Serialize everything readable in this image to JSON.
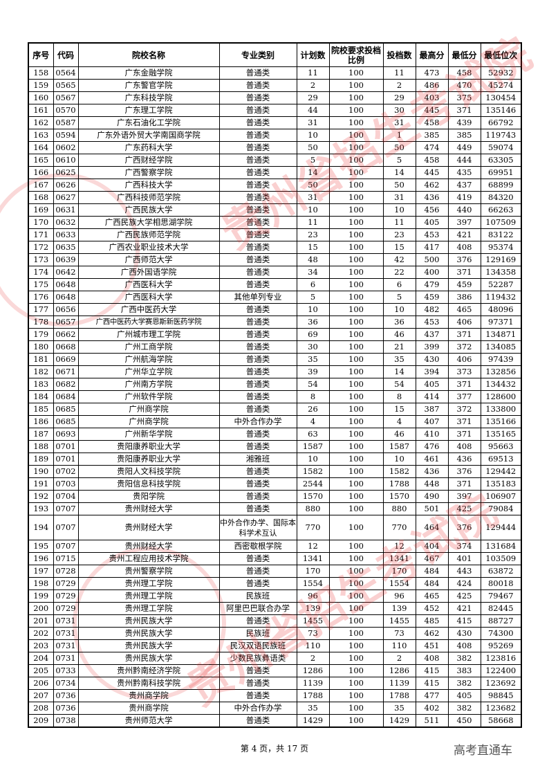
{
  "headers": [
    "序号",
    "代码",
    "院校名称",
    "专业类别",
    "计划数",
    "院校要求投档比例",
    "投档数",
    "最高分",
    "最低分",
    "最低位次"
  ],
  "rows": [
    [
      "158",
      "0564",
      "广东金融学院",
      "普通类",
      "11",
      "100",
      "11",
      "473",
      "458",
      "52932"
    ],
    [
      "159",
      "0565",
      "广东警官学院",
      "普通类",
      "2",
      "100",
      "2",
      "486",
      "470",
      "45274"
    ],
    [
      "160",
      "0567",
      "广东科技学院",
      "普通类",
      "29",
      "100",
      "29",
      "403",
      "375",
      "130454"
    ],
    [
      "161",
      "0570",
      "广东理工学院",
      "普通类",
      "44",
      "100",
      "30",
      "445",
      "371",
      "135146"
    ],
    [
      "162",
      "0587",
      "广东石油化工学院",
      "普通类",
      "31",
      "100",
      "31",
      "458",
      "439",
      "66792"
    ],
    [
      "163",
      "0594",
      "广东外语外贸大学南国商学院",
      "普通类",
      "10",
      "100",
      "1",
      "385",
      "385",
      "119743"
    ],
    [
      "164",
      "0602",
      "广东药科大学",
      "普通类",
      "50",
      "100",
      "50",
      "474",
      "449",
      "59074"
    ],
    [
      "165",
      "0610",
      "广西财经学院",
      "普通类",
      "5",
      "100",
      "5",
      "458",
      "444",
      "63305"
    ],
    [
      "166",
      "0625",
      "广西警察学院",
      "普通类",
      "14",
      "100",
      "14",
      "445",
      "435",
      "69951"
    ],
    [
      "167",
      "0626",
      "广西科技大学",
      "普通类",
      "50",
      "100",
      "50",
      "462",
      "437",
      "68899"
    ],
    [
      "168",
      "0627",
      "广西科技师范学院",
      "普通类",
      "31",
      "100",
      "31",
      "436",
      "419",
      "84320"
    ],
    [
      "169",
      "0631",
      "广西民族大学",
      "普通类",
      "10",
      "100",
      "10",
      "456",
      "440",
      "66263"
    ],
    [
      "170",
      "0632",
      "广西民族大学相思湖学院",
      "普通类",
      "11",
      "100",
      "11",
      "405",
      "397",
      "107509"
    ],
    [
      "171",
      "0633",
      "广西民族师范学院",
      "普通类",
      "23",
      "100",
      "23",
      "453",
      "421",
      "83122"
    ],
    [
      "172",
      "0635",
      "广西农业职业技术大学",
      "普通类",
      "15",
      "100",
      "15",
      "417",
      "408",
      "95374"
    ],
    [
      "173",
      "0639",
      "广西师范大学",
      "普通类",
      "48",
      "100",
      "42",
      "500",
      "376",
      "129169"
    ],
    [
      "174",
      "0642",
      "广西外国语学院",
      "普通类",
      "34",
      "100",
      "22",
      "400",
      "371",
      "134358"
    ],
    [
      "175",
      "0648",
      "广西医科大学",
      "普通类",
      "6",
      "100",
      "6",
      "479",
      "459",
      "52287"
    ],
    [
      "176",
      "0648",
      "广西医科大学",
      "其他单列专业",
      "5",
      "100",
      "5",
      "459",
      "386",
      "119432"
    ],
    [
      "177",
      "0656",
      "广西中医药大学",
      "普通类",
      "10",
      "100",
      "10",
      "482",
      "465",
      "48096"
    ],
    [
      "178",
      "0657",
      "广西中医药大学赛恩斯新医药学院",
      "普通类",
      "36",
      "100",
      "36",
      "453",
      "406",
      "97371"
    ],
    [
      "179",
      "0662",
      "广州城市理工学院",
      "普通类",
      "69",
      "100",
      "46",
      "437",
      "371",
      "134871"
    ],
    [
      "180",
      "0668",
      "广州工商学院",
      "普通类",
      "30",
      "100",
      "21",
      "399",
      "372",
      "134085"
    ],
    [
      "181",
      "0669",
      "广州航海学院",
      "普通类",
      "35",
      "100",
      "35",
      "430",
      "406",
      "97439"
    ],
    [
      "182",
      "0671",
      "广州华立学院",
      "普通类",
      "39",
      "100",
      "14",
      "394",
      "373",
      "132856"
    ],
    [
      "183",
      "0682",
      "广州南方学院",
      "普通类",
      "54",
      "100",
      "54",
      "405",
      "371",
      "134432"
    ],
    [
      "184",
      "0684",
      "广州软件学院",
      "普通类",
      "8",
      "100",
      "8",
      "414",
      "377",
      "128600"
    ],
    [
      "185",
      "0685",
      "广州商学院",
      "普通类",
      "26",
      "100",
      "15",
      "387",
      "372",
      "133800"
    ],
    [
      "186",
      "0685",
      "广州商学院",
      "中外合作办学",
      "4",
      "100",
      "4",
      "407",
      "371",
      "135166"
    ],
    [
      "187",
      "0693",
      "广州新华学院",
      "普通类",
      "63",
      "100",
      "46",
      "410",
      "371",
      "135165"
    ],
    [
      "188",
      "0701",
      "贵阳康养职业大学",
      "普通类",
      "1587",
      "100",
      "1587",
      "476",
      "408",
      "95663"
    ],
    [
      "189",
      "0701",
      "贵阳康养职业大学",
      "湘雅班",
      "10",
      "100",
      "10",
      "461",
      "436",
      "69513"
    ],
    [
      "190",
      "0702",
      "贵阳人文科技学院",
      "普通类",
      "1582",
      "100",
      "1582",
      "436",
      "376",
      "129442"
    ],
    [
      "191",
      "0703",
      "贵阳信息科技学院",
      "普通类",
      "2544",
      "100",
      "1788",
      "448",
      "371",
      "135183"
    ],
    [
      "192",
      "0704",
      "贵阳学院",
      "普通类",
      "1570",
      "100",
      "1570",
      "490",
      "397",
      "106907"
    ],
    [
      "193",
      "0707",
      "贵州财经大学",
      "普通类",
      "880",
      "100",
      "880",
      "501",
      "425",
      "79084"
    ],
    [
      "194",
      "0707",
      "贵州财经大学",
      "中外合作办学、国际本科学术互认",
      "770",
      "100",
      "770",
      "464",
      "376",
      "129444"
    ],
    [
      "195",
      "0707",
      "贵州财经大学",
      "西密歇根学院",
      "12",
      "100",
      "12",
      "404",
      "374",
      "131684"
    ],
    [
      "196",
      "0715",
      "贵州工程应用技术学院",
      "普通类",
      "1341",
      "100",
      "1341",
      "467",
      "401",
      "103509"
    ],
    [
      "197",
      "0728",
      "贵州警察学院",
      "普通类",
      "170",
      "100",
      "170",
      "484",
      "443",
      "63872"
    ],
    [
      "198",
      "0729",
      "贵州理工学院",
      "普通类",
      "1554",
      "100",
      "1554",
      "484",
      "424",
      "80018"
    ],
    [
      "199",
      "0729",
      "贵州理工学院",
      "民族班",
      "96",
      "100",
      "96",
      "465",
      "425",
      "79467"
    ],
    [
      "200",
      "0729",
      "贵州理工学院",
      "阿里巴巴联合办学",
      "139",
      "100",
      "139",
      "452",
      "421",
      "82445"
    ],
    [
      "201",
      "0731",
      "贵州民族大学",
      "普通类",
      "1455",
      "100",
      "1455",
      "485",
      "415",
      "88727"
    ],
    [
      "202",
      "0731",
      "贵州民族大学",
      "民族班",
      "73",
      "100",
      "73",
      "462",
      "430",
      "74300"
    ],
    [
      "203",
      "0731",
      "贵州民族大学",
      "民汉双语民族班",
      "110",
      "100",
      "110",
      "451",
      "408",
      "95269"
    ],
    [
      "204",
      "0731",
      "贵州民族大学",
      "少数民族彝语类",
      "2",
      "100",
      "2",
      "408",
      "382",
      "123816"
    ],
    [
      "205",
      "0733",
      "贵州黔南经济学院",
      "普通类",
      "1286",
      "100",
      "1286",
      "415",
      "383",
      "122400"
    ],
    [
      "206",
      "0734",
      "贵州黔南科技学院",
      "普通类",
      "1139",
      "100",
      "1139",
      "415",
      "382",
      "123692"
    ],
    [
      "207",
      "0736",
      "贵州商学院",
      "普通类",
      "1788",
      "100",
      "1788",
      "477",
      "405",
      "98845"
    ],
    [
      "208",
      "0736",
      "贵州商学院",
      "中外合作办学",
      "35",
      "100",
      "35",
      "402",
      "382",
      "123682"
    ],
    [
      "209",
      "0738",
      "贵州师范大学",
      "普通类",
      "1429",
      "100",
      "1429",
      "511",
      "450",
      "58668"
    ]
  ],
  "footer": {
    "page_text": "第 4 页，共 17 页"
  },
  "brand_watermark": "高考直通车",
  "seal_watermark": "贵州省招生考试院",
  "colors": {
    "watermark_red": "#e62828"
  }
}
